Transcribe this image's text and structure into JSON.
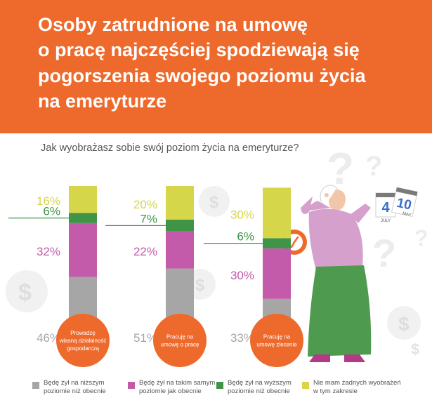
{
  "title": {
    "lines": [
      "Osoby zatrudnione na umowę",
      "o pracę najczęściej spodziewają się",
      "pogorszenia swojego poziomu życia",
      "na emeryturze"
    ]
  },
  "calendar": {
    "day1": "4",
    "month1": "JULY",
    "day2": "10",
    "month2": "MAY"
  },
  "legend": [
    {
      "lines": [
        "Będę żył na niższym",
        "poziomie niż obecnie"
      ]
    },
    {
      "lines": [
        "Będę żył na takim samym",
        "poziomie jak obecnie"
      ]
    },
    {
      "lines": [
        "Będę żył na wyższym",
        "poziomie niż obecnie"
      ]
    },
    {
      "lines": [
        "Nie mam żadnych wyobrażeń",
        "w tym zakresie"
      ]
    }
  ],
  "chart_data": {
    "type": "bar",
    "stacked": true,
    "title": "Jak wyobrażasz sobie swój poziom życia na emeryturze?",
    "categories": [
      [
        "Prowadzę",
        "własną działalność",
        "gospodarczą"
      ],
      [
        "Pracuję na",
        "umowę o pracę"
      ],
      [
        "Pracuję na",
        "umowę zlecenie"
      ]
    ],
    "series": [
      {
        "name": "Będę żył na niższym poziomie niż obecnie",
        "color": "#a6a6a6",
        "values": [
          46,
          51,
          33
        ]
      },
      {
        "name": "Będę żył na takim samym poziomie jak obecnie",
        "color": "#c45aaa",
        "values": [
          32,
          22,
          30
        ]
      },
      {
        "name": "Będę żył na wyższym poziomie niż obecnie",
        "color": "#3f9447",
        "values": [
          6,
          7,
          6
        ]
      },
      {
        "name": "Nie mam żadnych wyobrażeń w tym zakresie",
        "color": "#d5d64a",
        "values": [
          16,
          20,
          30
        ]
      }
    ],
    "data_labels": [
      [
        "46%",
        "32%",
        "6%",
        "16%"
      ],
      [
        "51%",
        "22%",
        "7%",
        "20%"
      ],
      [
        "33%",
        "30%",
        "6%",
        "30%"
      ]
    ],
    "label_colors": [
      "#a6a6a6",
      "#c45aaa",
      "#3f9447",
      "#d5d64a"
    ],
    "accent": "#ee6a2c",
    "ylim": [
      0,
      100
    ]
  }
}
